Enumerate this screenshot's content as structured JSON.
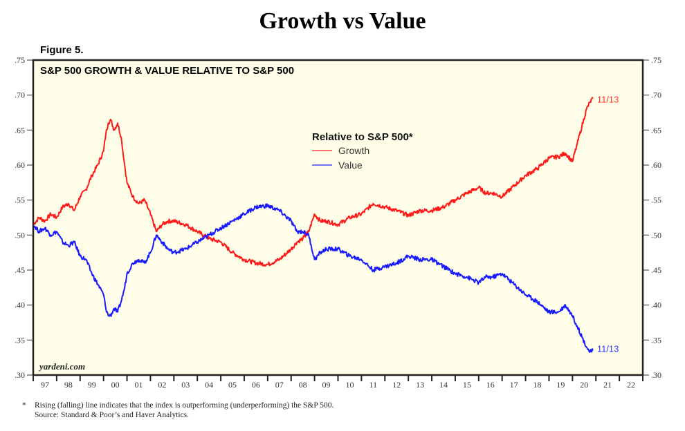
{
  "header": {
    "title": "Growth vs Value",
    "figure_label": "Figure 5."
  },
  "chart_data": {
    "type": "line",
    "title": "S&P 500 GROWTH & VALUE RELATIVE TO S&P 500",
    "xlabel": "",
    "ylabel": "",
    "xlim": [
      1997,
      2023
    ],
    "ylim": [
      0.3,
      0.75
    ],
    "y_ticks": [
      0.3,
      0.35,
      0.4,
      0.45,
      0.5,
      0.55,
      0.6,
      0.65,
      0.7,
      0.75
    ],
    "y_tick_labels": [
      ".30",
      ".35",
      ".40",
      ".45",
      ".50",
      ".55",
      ".60",
      ".65",
      ".70",
      ".75"
    ],
    "x_tick_labels": [
      "97",
      "98",
      "99",
      "00",
      "01",
      "02",
      "03",
      "04",
      "05",
      "06",
      "07",
      "08",
      "09",
      "10",
      "11",
      "12",
      "13",
      "14",
      "15",
      "16",
      "17",
      "18",
      "19",
      "20",
      "21",
      "22"
    ],
    "grid": false,
    "background": "#fffee8",
    "legend": {
      "title": "Relative to S&P 500*",
      "placement": "top-center",
      "entries": [
        "Growth",
        "Value"
      ]
    },
    "watermark": "yardeni.com",
    "series": [
      {
        "name": "Growth",
        "color": "#ff1a1a",
        "end_label": "11/13",
        "x": [
          1997.0,
          1997.25,
          1997.5,
          1997.75,
          1998.0,
          1998.25,
          1998.5,
          1998.75,
          1999.0,
          1999.25,
          1999.5,
          1999.75,
          2000.0,
          2000.1,
          2000.2,
          2000.3,
          2000.45,
          2000.6,
          2000.75,
          2000.9,
          2001.0,
          2001.25,
          2001.5,
          2001.75,
          2002.0,
          2002.25,
          2002.5,
          2002.75,
          2003.0,
          2003.5,
          2004.0,
          2004.5,
          2005.0,
          2005.5,
          2006.0,
          2006.5,
          2007.0,
          2007.5,
          2008.0,
          2008.25,
          2008.5,
          2008.75,
          2009.0,
          2009.25,
          2009.5,
          2010.0,
          2010.5,
          2011.0,
          2011.5,
          2012.0,
          2012.5,
          2013.0,
          2013.5,
          2014.0,
          2014.5,
          2015.0,
          2015.5,
          2016.0,
          2016.3,
          2016.6,
          2017.0,
          2017.5,
          2018.0,
          2018.5,
          2019.0,
          2019.4,
          2019.7,
          2020.0,
          2020.2,
          2020.4,
          2020.6,
          2020.75,
          2020.87
        ],
        "values": [
          0.515,
          0.525,
          0.52,
          0.53,
          0.525,
          0.54,
          0.545,
          0.535,
          0.555,
          0.565,
          0.585,
          0.6,
          0.62,
          0.645,
          0.66,
          0.665,
          0.65,
          0.66,
          0.64,
          0.6,
          0.575,
          0.555,
          0.545,
          0.55,
          0.53,
          0.505,
          0.515,
          0.52,
          0.52,
          0.515,
          0.505,
          0.495,
          0.49,
          0.475,
          0.465,
          0.46,
          0.458,
          0.465,
          0.48,
          0.49,
          0.495,
          0.505,
          0.53,
          0.52,
          0.52,
          0.515,
          0.525,
          0.53,
          0.545,
          0.54,
          0.535,
          0.528,
          0.535,
          0.535,
          0.54,
          0.55,
          0.56,
          0.568,
          0.56,
          0.56,
          0.555,
          0.57,
          0.585,
          0.595,
          0.61,
          0.612,
          0.617,
          0.605,
          0.63,
          0.655,
          0.68,
          0.69,
          0.695
        ]
      },
      {
        "name": "Value",
        "color": "#1a1aff",
        "end_label": "11/13",
        "x": [
          1997.0,
          1997.25,
          1997.5,
          1997.75,
          1998.0,
          1998.25,
          1998.5,
          1998.75,
          1999.0,
          1999.25,
          1999.5,
          1999.75,
          2000.0,
          2000.1,
          2000.2,
          2000.3,
          2000.45,
          2000.6,
          2000.75,
          2000.9,
          2001.0,
          2001.25,
          2001.5,
          2001.75,
          2002.0,
          2002.25,
          2002.5,
          2002.75,
          2003.0,
          2003.5,
          2004.0,
          2004.5,
          2005.0,
          2005.5,
          2006.0,
          2006.5,
          2007.0,
          2007.5,
          2008.0,
          2008.25,
          2008.5,
          2008.75,
          2009.0,
          2009.25,
          2009.5,
          2010.0,
          2010.5,
          2011.0,
          2011.5,
          2012.0,
          2012.5,
          2013.0,
          2013.5,
          2014.0,
          2014.5,
          2015.0,
          2015.5,
          2016.0,
          2016.3,
          2016.6,
          2017.0,
          2017.5,
          2018.0,
          2018.5,
          2019.0,
          2019.4,
          2019.7,
          2020.0,
          2020.2,
          2020.4,
          2020.6,
          2020.75,
          2020.87
        ],
        "values": [
          0.515,
          0.505,
          0.51,
          0.5,
          0.505,
          0.49,
          0.485,
          0.49,
          0.47,
          0.465,
          0.445,
          0.43,
          0.415,
          0.395,
          0.385,
          0.385,
          0.395,
          0.39,
          0.405,
          0.425,
          0.445,
          0.46,
          0.465,
          0.46,
          0.475,
          0.5,
          0.49,
          0.48,
          0.475,
          0.48,
          0.49,
          0.5,
          0.51,
          0.52,
          0.53,
          0.54,
          0.542,
          0.535,
          0.52,
          0.505,
          0.505,
          0.5,
          0.465,
          0.475,
          0.48,
          0.48,
          0.47,
          0.465,
          0.45,
          0.455,
          0.46,
          0.47,
          0.465,
          0.465,
          0.455,
          0.445,
          0.44,
          0.432,
          0.44,
          0.44,
          0.445,
          0.43,
          0.415,
          0.405,
          0.39,
          0.39,
          0.4,
          0.385,
          0.37,
          0.355,
          0.34,
          0.333,
          0.335
        ]
      }
    ]
  },
  "footnote": {
    "star": "*",
    "line1": "Rising (falling) line indicates that the index is outperforming (underperforming) the S&P 500.",
    "line2": "Source: Standard & Poor’s and Haver Analytics."
  }
}
